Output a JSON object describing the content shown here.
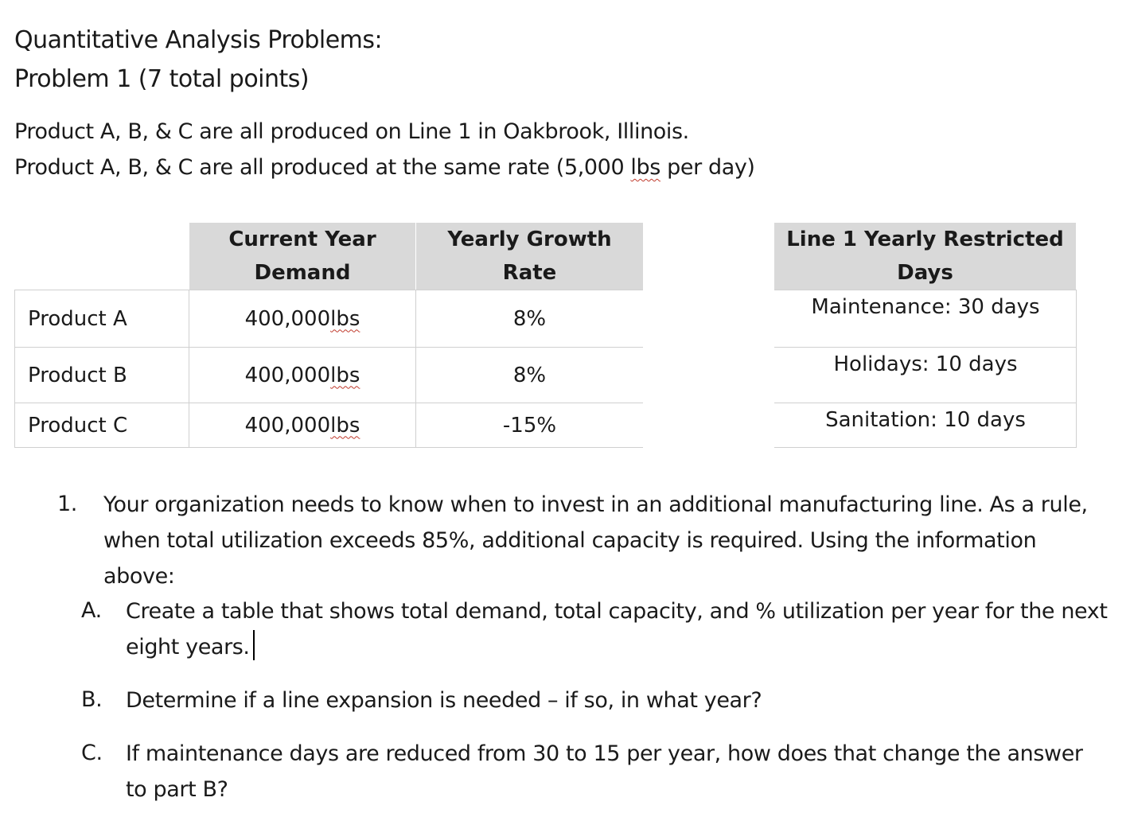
{
  "heading": {
    "title": "Quantitative Analysis Problems:",
    "problem": "Problem 1 (7 total points)"
  },
  "intro": {
    "line1": "Product A, B, & C are all produced on Line 1 in Oakbrook, Illinois.",
    "line2_before": "Product A, B, & C are all produced at the same rate (5,000 ",
    "line2_unit": "lbs",
    "line2_after": " per day)"
  },
  "product_table": {
    "headers": {
      "demand_l1": "Current Year",
      "demand_l2": "Demand",
      "growth_l1": "Yearly Growth",
      "growth_l2": "Rate"
    },
    "rows": [
      {
        "product": "Product A",
        "demand_num": "400,000 ",
        "demand_unit": "lbs",
        "growth": "8%"
      },
      {
        "product": "Product B",
        "demand_num": "400,000 ",
        "demand_unit": "lbs",
        "growth": "8%"
      },
      {
        "product": "Product C",
        "demand_num": "400,000 ",
        "demand_unit": "lbs",
        "growth": "-15%"
      }
    ]
  },
  "restricted_table": {
    "header_l1": "Line 1 Yearly Restricted",
    "header_l2": "Days",
    "rows": [
      "Maintenance: 30 days",
      "Holidays: 10 days",
      "Sanitation: 10 days"
    ]
  },
  "question": {
    "number": "1.",
    "line1": "Your organization needs to know when to invest in an additional manufacturing line. As a rule,",
    "line2": "when total utilization exceeds 85%, additional capacity is required. Using the information",
    "line3": "above:",
    "parts": [
      {
        "marker": "A.",
        "line1": "Create a table that shows total demand, total capacity, and % utilization per year for the next",
        "line2": "eight years."
      },
      {
        "marker": "B.",
        "line1": "Determine if a line expansion is needed – if so, in what year?"
      },
      {
        "marker": "C.",
        "line1": "If maintenance days are reduced from 30 to 15 per year, how does that change the answer",
        "line2": "to part B?"
      }
    ]
  }
}
